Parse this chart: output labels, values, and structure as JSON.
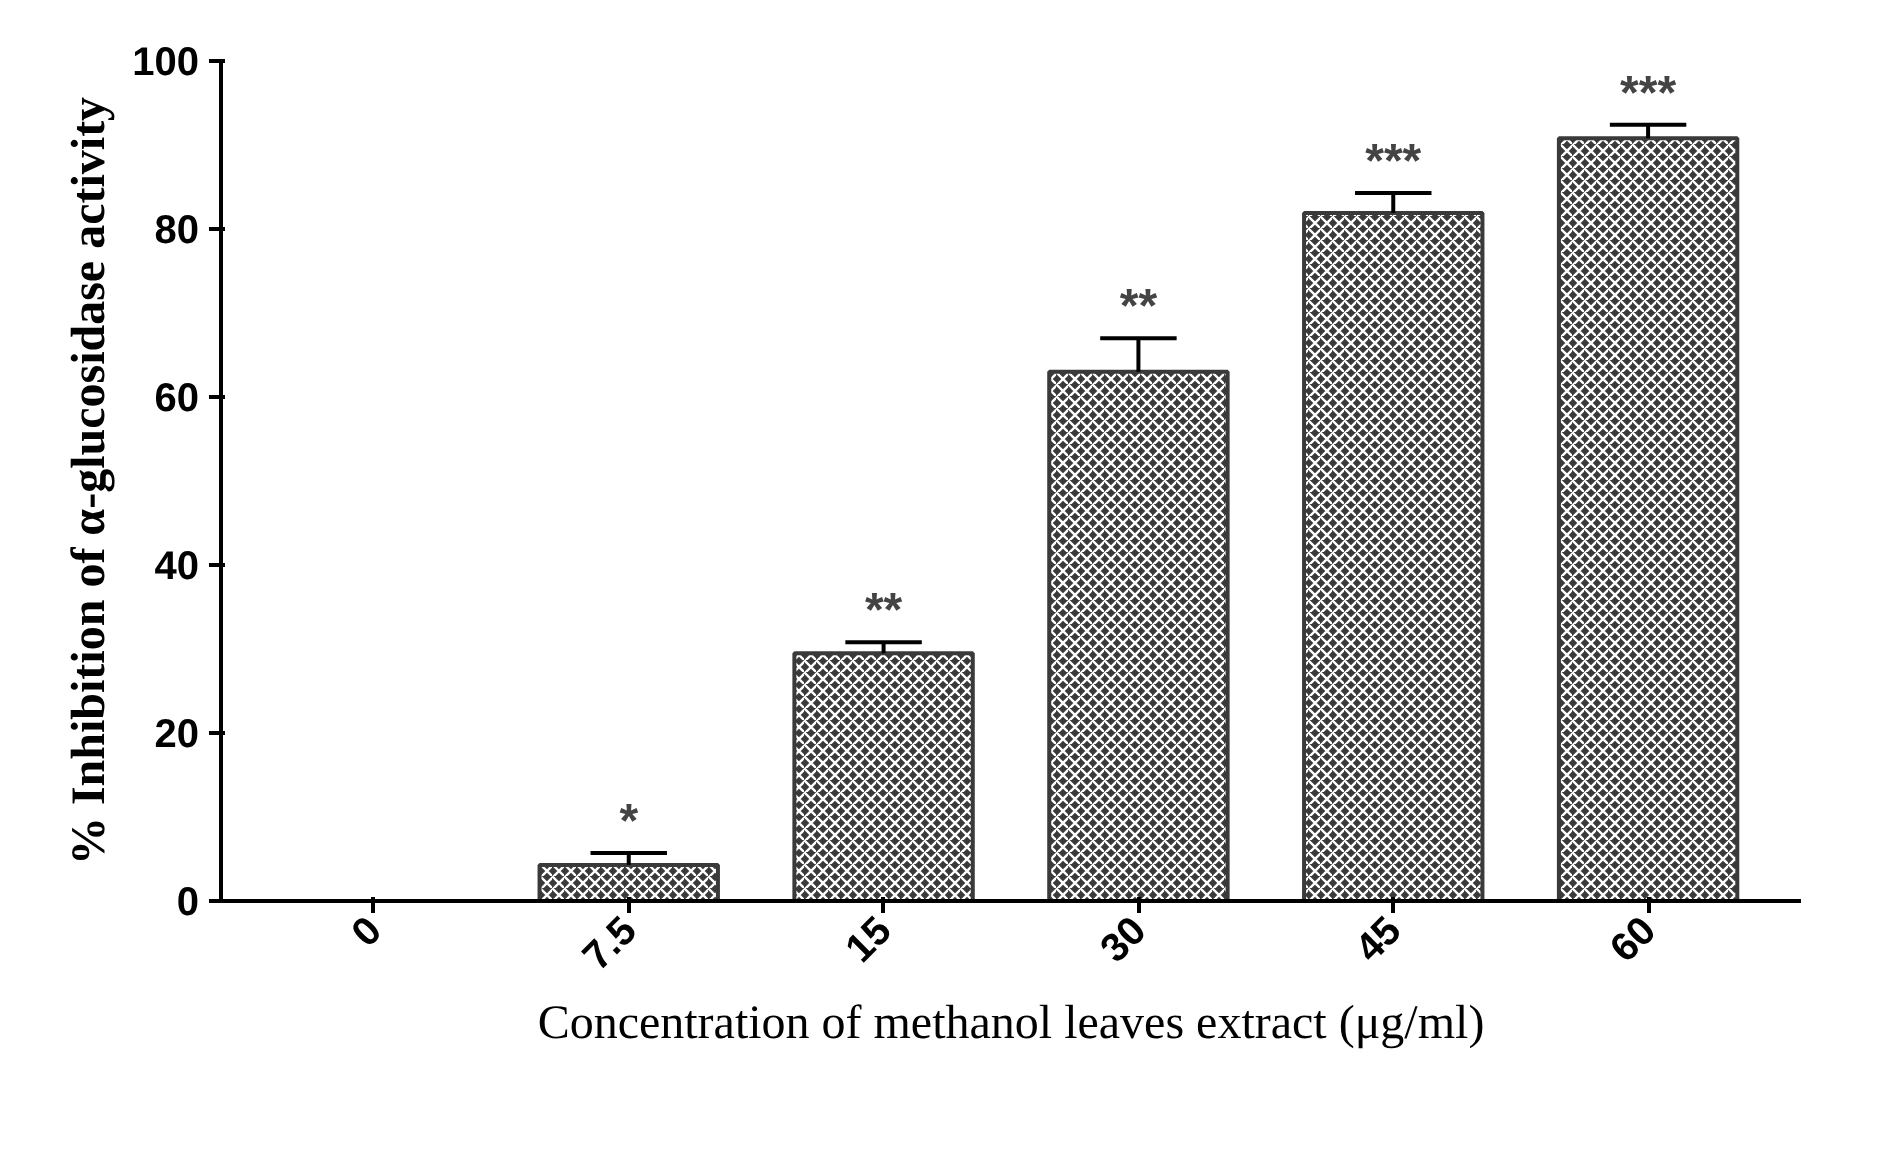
{
  "chart_data": {
    "type": "bar",
    "xlabel": "Concentration of methanol leaves extract (μg/ml)",
    "ylabel": "% Inhibition of α-glucosidase activity",
    "categories": [
      "0",
      "7.5",
      "15",
      "30",
      "45",
      "60"
    ],
    "values": [
      0,
      4.3,
      29.5,
      63,
      81.9,
      90.8
    ],
    "errors": [
      null,
      1.4,
      1.3,
      4,
      2.4,
      1.6
    ],
    "color": "#3a3a3a",
    "ylim": [
      0,
      100
    ],
    "yticks": [
      0,
      20,
      40,
      60,
      80,
      100
    ],
    "grid": false,
    "annotations": [
      {
        "text": "*",
        "x": "7.5",
        "y": 5.7
      },
      {
        "text": "**",
        "x": "15",
        "y": 30.8
      },
      {
        "text": "**",
        "x": "30",
        "y": 67
      },
      {
        "text": "***",
        "x": "45",
        "y": 84.3
      },
      {
        "text": "***",
        "x": "60",
        "y": 92.4
      }
    ]
  }
}
